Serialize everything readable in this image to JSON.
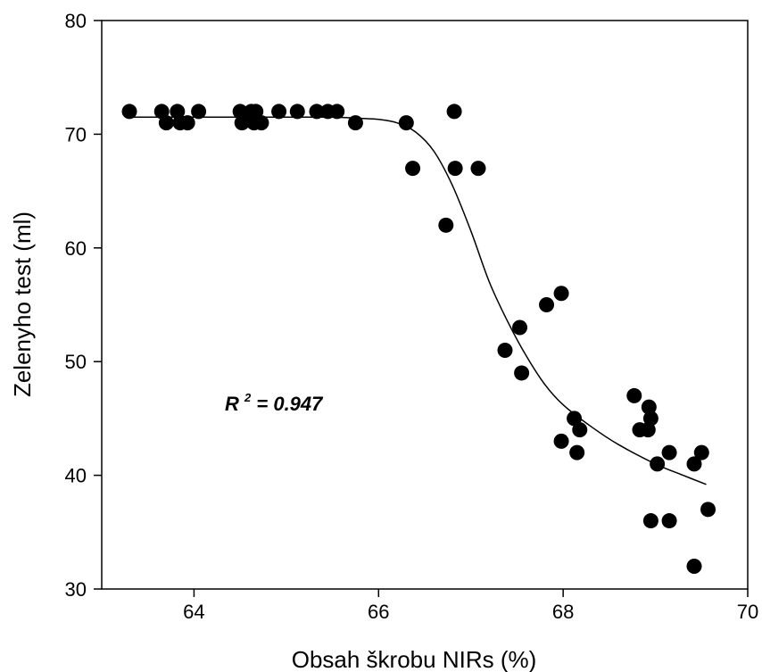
{
  "chart_data": {
    "type": "scatter",
    "xlabel": "Obsah škrobu NIRs (%)",
    "ylabel": "Zelenyho test (ml)",
    "xlim": [
      63,
      70
    ],
    "ylim": [
      30,
      80
    ],
    "xticks": [
      64,
      66,
      68,
      70
    ],
    "yticks": [
      30,
      40,
      50,
      60,
      70,
      80
    ],
    "grid": false,
    "annotation": {
      "r": "R",
      "sup": "2",
      "rest": " = 0.947"
    },
    "points": [
      {
        "x": 63.3,
        "y": 72
      },
      {
        "x": 63.65,
        "y": 72
      },
      {
        "x": 63.7,
        "y": 71
      },
      {
        "x": 63.82,
        "y": 72
      },
      {
        "x": 63.85,
        "y": 71
      },
      {
        "x": 63.93,
        "y": 71
      },
      {
        "x": 64.05,
        "y": 72
      },
      {
        "x": 64.5,
        "y": 72
      },
      {
        "x": 64.52,
        "y": 71
      },
      {
        "x": 64.62,
        "y": 72
      },
      {
        "x": 64.65,
        "y": 71
      },
      {
        "x": 64.67,
        "y": 72
      },
      {
        "x": 64.73,
        "y": 71
      },
      {
        "x": 64.92,
        "y": 72
      },
      {
        "x": 65.12,
        "y": 72
      },
      {
        "x": 65.33,
        "y": 72
      },
      {
        "x": 65.45,
        "y": 72
      },
      {
        "x": 65.55,
        "y": 72
      },
      {
        "x": 65.75,
        "y": 71
      },
      {
        "x": 66.3,
        "y": 71
      },
      {
        "x": 66.37,
        "y": 67
      },
      {
        "x": 66.73,
        "y": 62
      },
      {
        "x": 66.82,
        "y": 72
      },
      {
        "x": 66.83,
        "y": 67
      },
      {
        "x": 67.08,
        "y": 67
      },
      {
        "x": 67.37,
        "y": 51
      },
      {
        "x": 67.53,
        "y": 53
      },
      {
        "x": 67.55,
        "y": 49
      },
      {
        "x": 67.82,
        "y": 55
      },
      {
        "x": 67.98,
        "y": 56
      },
      {
        "x": 67.98,
        "y": 43
      },
      {
        "x": 68.12,
        "y": 45
      },
      {
        "x": 68.15,
        "y": 42
      },
      {
        "x": 68.18,
        "y": 44
      },
      {
        "x": 68.77,
        "y": 47
      },
      {
        "x": 68.83,
        "y": 44
      },
      {
        "x": 68.92,
        "y": 44
      },
      {
        "x": 68.93,
        "y": 46
      },
      {
        "x": 68.95,
        "y": 45
      },
      {
        "x": 68.95,
        "y": 36
      },
      {
        "x": 69.02,
        "y": 41
      },
      {
        "x": 69.15,
        "y": 42
      },
      {
        "x": 69.15,
        "y": 36
      },
      {
        "x": 69.42,
        "y": 32
      },
      {
        "x": 69.42,
        "y": 41
      },
      {
        "x": 69.5,
        "y": 42
      },
      {
        "x": 69.57,
        "y": 37
      }
    ],
    "fit_curve": {
      "type": "sigmoid",
      "x_range": [
        63.3,
        69.55
      ],
      "samples": [
        {
          "x": 63.3,
          "y": 71.5
        },
        {
          "x": 64.0,
          "y": 71.5
        },
        {
          "x": 65.0,
          "y": 71.5
        },
        {
          "x": 65.5,
          "y": 71.5
        },
        {
          "x": 65.8,
          "y": 71.4
        },
        {
          "x": 66.0,
          "y": 71.3
        },
        {
          "x": 66.2,
          "y": 71.0
        },
        {
          "x": 66.4,
          "y": 70.2
        },
        {
          "x": 66.6,
          "y": 68.5
        },
        {
          "x": 66.8,
          "y": 65.5
        },
        {
          "x": 67.0,
          "y": 61.5
        },
        {
          "x": 67.2,
          "y": 57.0
        },
        {
          "x": 67.4,
          "y": 53.5
        },
        {
          "x": 67.6,
          "y": 50.5
        },
        {
          "x": 67.8,
          "y": 48.0
        },
        {
          "x": 68.0,
          "y": 46.2
        },
        {
          "x": 68.3,
          "y": 44.3
        },
        {
          "x": 68.6,
          "y": 42.7
        },
        {
          "x": 69.0,
          "y": 41.0
        },
        {
          "x": 69.3,
          "y": 40.0
        },
        {
          "x": 69.55,
          "y": 39.2
        }
      ]
    }
  }
}
